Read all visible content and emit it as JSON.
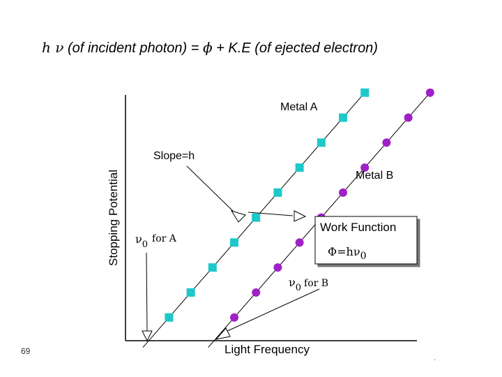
{
  "slide": {
    "title_parts": {
      "hnu": "h ν",
      "incident": " (of incident photon) = ",
      "phi": "ϕ",
      "rest": " + K.E (of ejected electron)"
    },
    "number": "69",
    "corner_mark": "."
  },
  "chart_data": {
    "type": "scatter",
    "xlabel": "Light Frequency",
    "ylabel": "Stopping Potential",
    "xlim": [
      0,
      10
    ],
    "ylim": [
      0,
      10
    ],
    "grid": false,
    "legend": "none",
    "series": [
      {
        "name": "Metal A",
        "marker": "square",
        "color": "#1ec8c8",
        "points": [
          [
            1.5,
            0.8
          ],
          [
            2.25,
            1.66
          ],
          [
            3.0,
            2.52
          ],
          [
            3.75,
            3.38
          ],
          [
            4.5,
            4.24
          ],
          [
            5.25,
            5.1
          ],
          [
            6.0,
            5.96
          ],
          [
            6.75,
            6.82
          ],
          [
            7.5,
            7.68
          ],
          [
            8.25,
            8.54
          ]
        ]
      },
      {
        "name": "Metal B",
        "marker": "circle",
        "color": "#a020c8",
        "points": [
          [
            3.75,
            0.8
          ],
          [
            4.5,
            1.66
          ],
          [
            5.25,
            2.52
          ],
          [
            6.0,
            3.38
          ],
          [
            6.75,
            4.24
          ],
          [
            7.5,
            5.1
          ],
          [
            8.25,
            5.96
          ],
          [
            9.0,
            6.82
          ],
          [
            9.75,
            7.68
          ],
          [
            10.5,
            8.54
          ]
        ]
      }
    ],
    "annotations": {
      "slope": "Slope=h",
      "v0_a_sym": "ν",
      "v0_a_sub": "0",
      "v0_a_text": "for A",
      "v0_b_sym": "ν",
      "v0_b_sub": "0",
      "v0_b_text": "for B",
      "work_function_title": "Work Function",
      "work_function_formula": "Φ=hν",
      "work_function_sub": "0"
    }
  }
}
